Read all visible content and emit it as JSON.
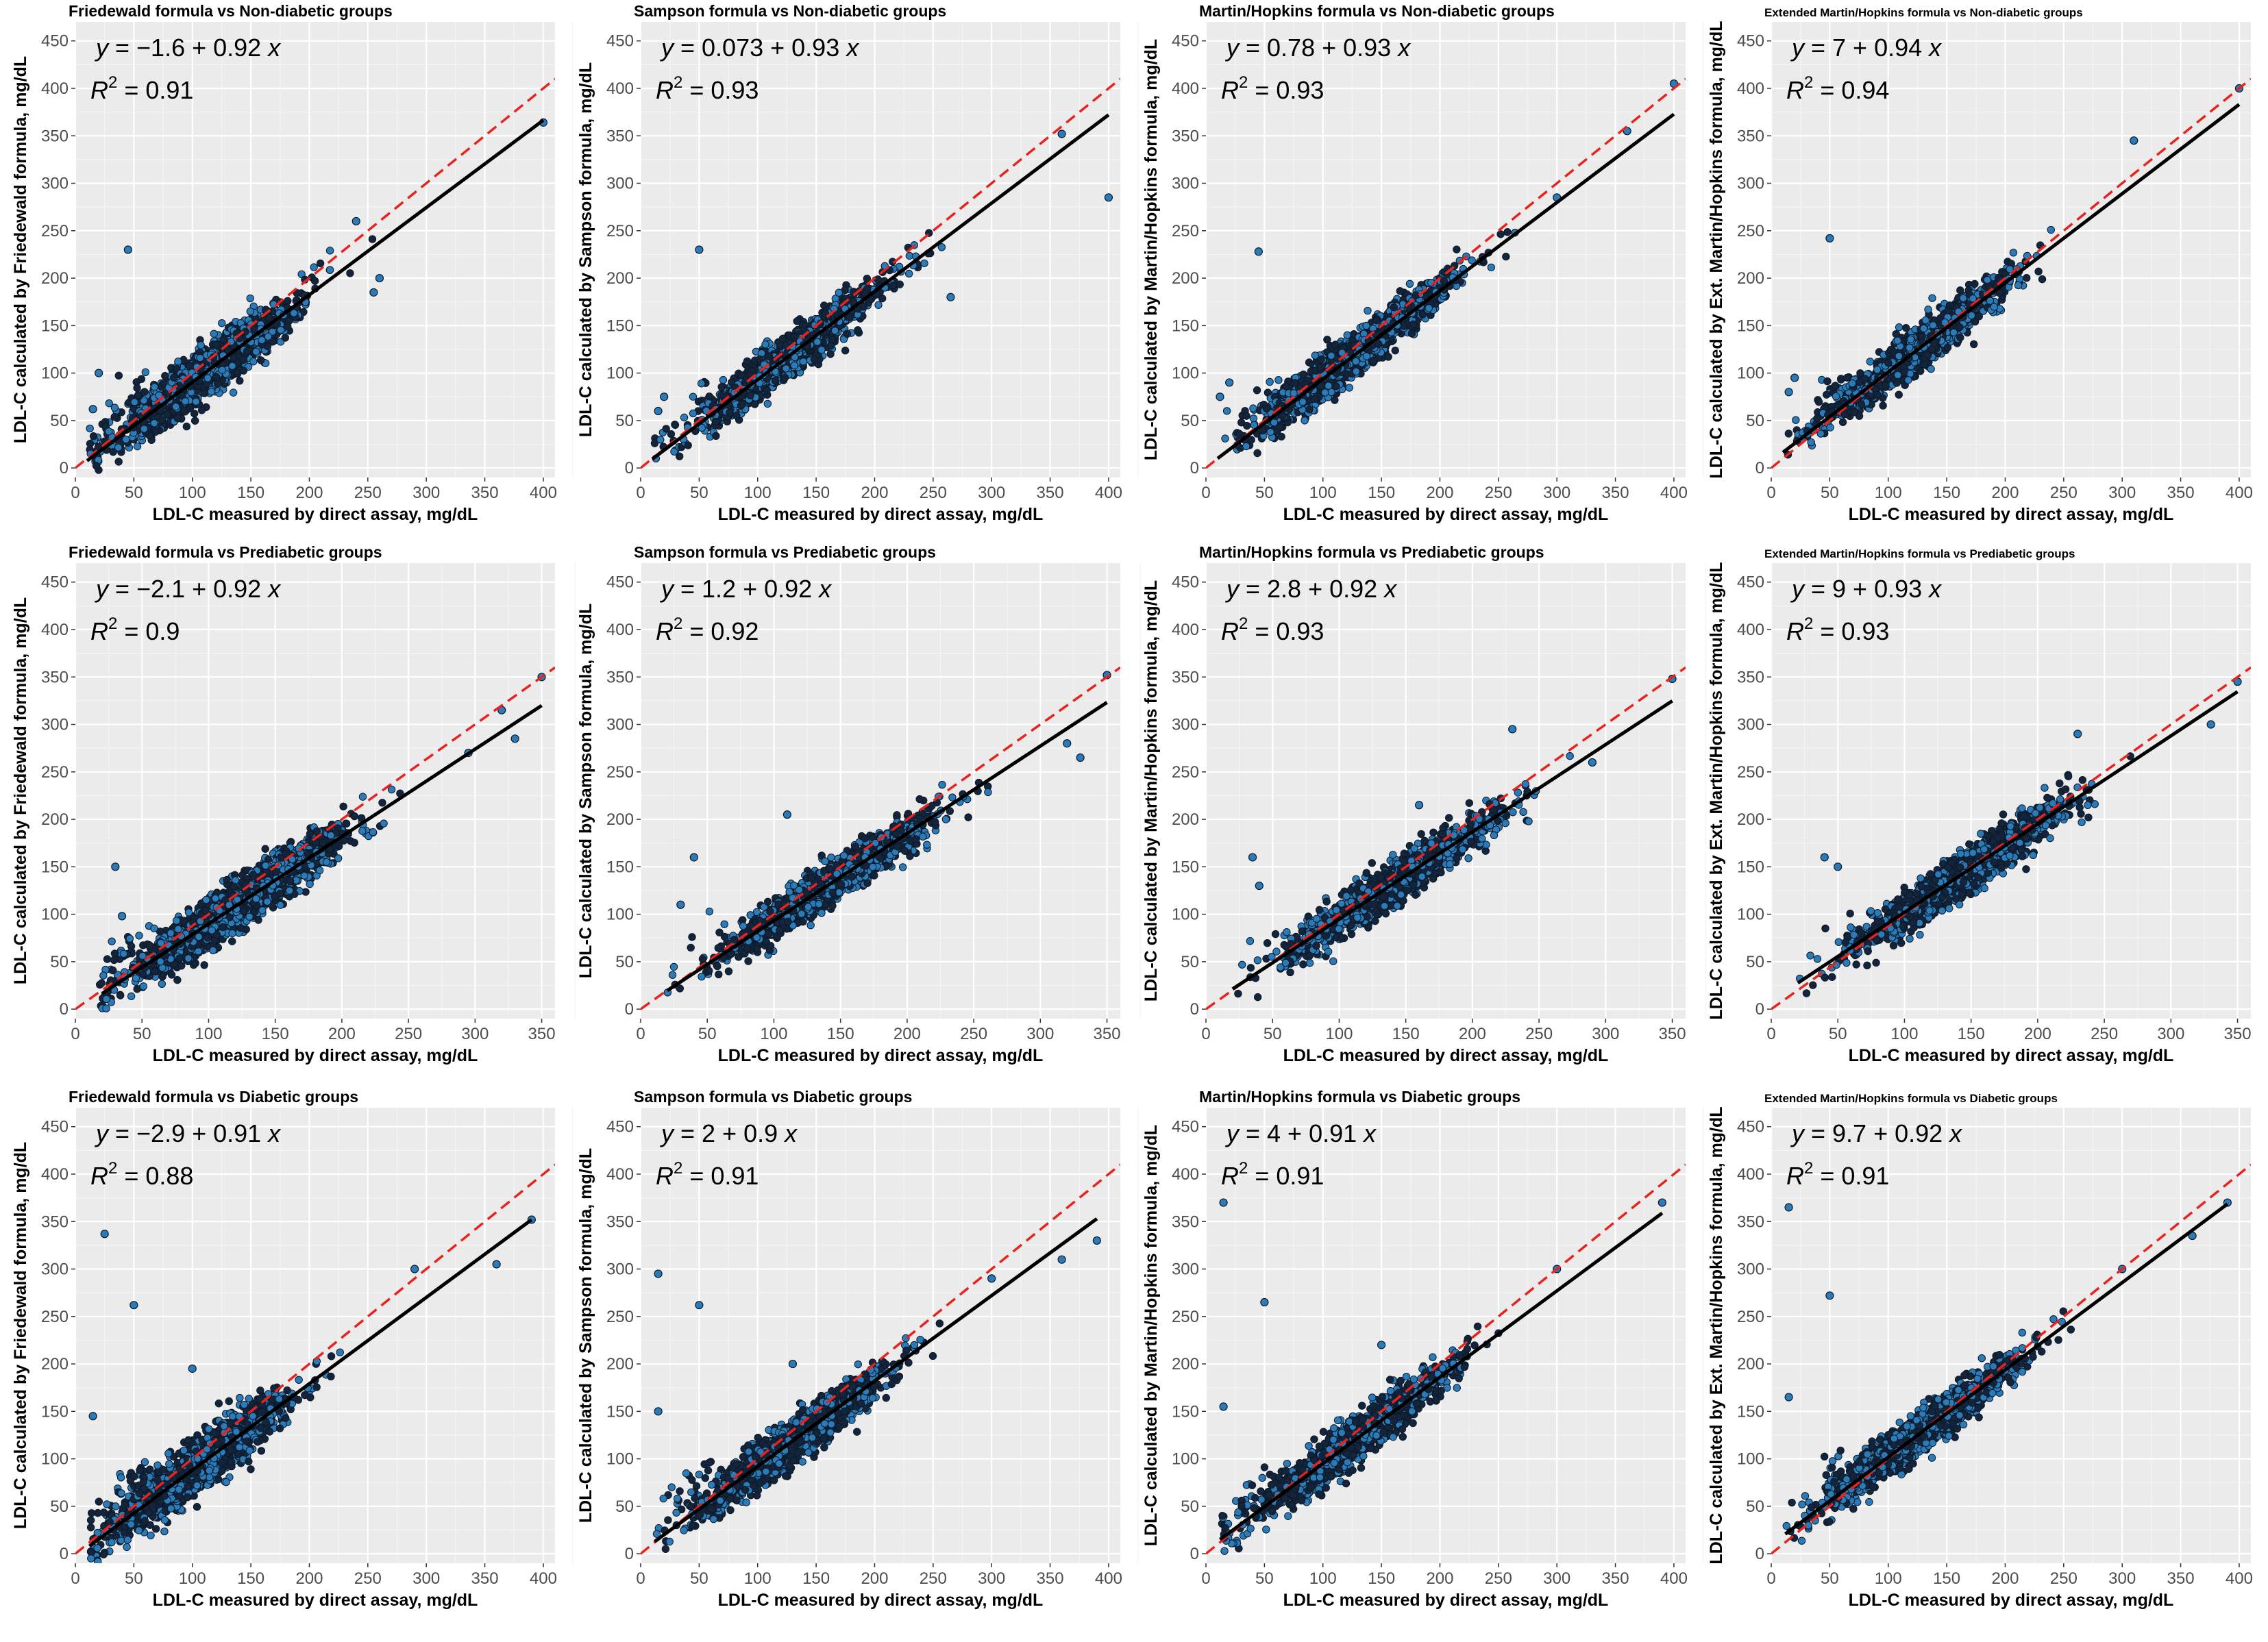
{
  "colors": {
    "panel_bg": "#ebebeb",
    "grid_major": "#ffffff",
    "grid_minor": "#f4f4f4",
    "point_fill": "#2b7bb9",
    "point_dark": "#14243a",
    "point_stroke": "#0b1a2a",
    "fit_line": "#000000",
    "identity_line": "#e8231e"
  },
  "x_axis_label": "LDL-C measured by direct assay, mg/dL",
  "chart_data": [
    {
      "type": "scatter",
      "row": 0,
      "col": 0,
      "title": "Friedewald formula vs Non-diabetic groups",
      "xlabel": "LDL-C measured by direct assay, mg/dL",
      "ylabel": "LDL-C calculated by Friedewald formula, mg/dL",
      "xlim": [
        0,
        410
      ],
      "ylim": [
        -10,
        470
      ],
      "xticks": [
        0,
        50,
        100,
        150,
        200,
        250,
        300,
        350,
        400
      ],
      "yticks": [
        0,
        50,
        100,
        150,
        200,
        250,
        300,
        350,
        400,
        450
      ],
      "equation": {
        "lhs": "y",
        "intercept": "−1.6",
        "sign": "+",
        "slope": "0.92",
        "var": "x"
      },
      "r2": {
        "label": "R",
        "sup": "2",
        "value": "= 0.91"
      },
      "fit": {
        "intercept": -1.6,
        "slope": 0.92,
        "x_range": [
          10,
          400
        ]
      },
      "identity_line": {
        "intercept": 0,
        "slope": 1
      },
      "cloud": {
        "x_center": 110,
        "x_spread": 38,
        "x_min": 12,
        "x_max": 265,
        "noise": 13,
        "n": 1600
      },
      "points": [
        [
          400,
          364
        ],
        [
          45,
          230
        ],
        [
          15,
          62
        ],
        [
          20,
          100
        ],
        [
          255,
          185
        ],
        [
          260,
          200
        ],
        [
          240,
          260
        ]
      ]
    },
    {
      "type": "scatter",
      "row": 0,
      "col": 1,
      "title": "Sampson formula vs Non-diabetic groups",
      "xlabel": "LDL-C measured by direct assay, mg/dL",
      "ylabel": "LDL-C calculated by Sampson formula, mg/dL",
      "xlim": [
        0,
        410
      ],
      "ylim": [
        -10,
        470
      ],
      "xticks": [
        0,
        50,
        100,
        150,
        200,
        250,
        300,
        350,
        400
      ],
      "yticks": [
        0,
        50,
        100,
        150,
        200,
        250,
        300,
        350,
        400,
        450
      ],
      "equation": {
        "lhs": "y",
        "intercept": "0.073",
        "sign": "+",
        "slope": "0.93",
        "var": "x"
      },
      "r2": {
        "label": "R",
        "sup": "2",
        "value": "= 0.93"
      },
      "fit": {
        "intercept": 0.073,
        "slope": 0.93,
        "x_range": [
          10,
          400
        ]
      },
      "identity_line": {
        "intercept": 0,
        "slope": 1
      },
      "cloud": {
        "x_center": 125,
        "x_spread": 40,
        "x_min": 12,
        "x_max": 265,
        "noise": 11,
        "n": 1400
      },
      "points": [
        [
          400,
          285
        ],
        [
          360,
          352
        ],
        [
          50,
          230
        ],
        [
          15,
          60
        ],
        [
          20,
          75
        ],
        [
          265,
          180
        ]
      ]
    },
    {
      "type": "scatter",
      "row": 0,
      "col": 2,
      "title": "Martin/Hopkins formula vs Non-diabetic groups",
      "xlabel": "LDL-C measured by direct assay, mg/dL",
      "ylabel": "LDL-C calculated by Martin/Hopkins formula, mg/dL",
      "xlim": [
        0,
        410
      ],
      "ylim": [
        -10,
        470
      ],
      "xticks": [
        0,
        50,
        100,
        150,
        200,
        250,
        300,
        350,
        400
      ],
      "yticks": [
        0,
        50,
        100,
        150,
        200,
        250,
        300,
        350,
        400,
        450
      ],
      "equation": {
        "lhs": "y",
        "intercept": "0.78",
        "sign": "+",
        "slope": "0.93",
        "var": "x"
      },
      "r2": {
        "label": "R",
        "sup": "2",
        "value": "= 0.93"
      },
      "fit": {
        "intercept": 0.78,
        "slope": 0.93,
        "x_range": [
          10,
          400
        ]
      },
      "identity_line": {
        "intercept": 0,
        "slope": 1
      },
      "cloud": {
        "x_center": 125,
        "x_spread": 40,
        "x_min": 12,
        "x_max": 265,
        "noise": 11,
        "n": 1400
      },
      "points": [
        [
          400,
          405
        ],
        [
          360,
          355
        ],
        [
          45,
          228
        ],
        [
          12,
          75
        ],
        [
          20,
          90
        ],
        [
          300,
          285
        ]
      ]
    },
    {
      "type": "scatter",
      "row": 0,
      "col": 3,
      "title": "Extended Martin/Hopkins formula vs Non-diabetic groups",
      "xlabel": "LDL-C measured by direct assay, mg/dL",
      "ylabel": "LDL-C calculated by Ext. Martin/Hopkins formula, mg/dL",
      "xlim": [
        0,
        410
      ],
      "ylim": [
        -10,
        470
      ],
      "xticks": [
        0,
        50,
        100,
        150,
        200,
        250,
        300,
        350,
        400
      ],
      "yticks": [
        0,
        50,
        100,
        150,
        200,
        250,
        300,
        350,
        400,
        450
      ],
      "equation": {
        "lhs": "y",
        "intercept": "7",
        "sign": "+",
        "slope": "0.94",
        "var": "x"
      },
      "r2": {
        "label": "R",
        "sup": "2",
        "value": "= 0.94"
      },
      "fit": {
        "intercept": 7,
        "slope": 0.94,
        "x_range": [
          10,
          400
        ]
      },
      "identity_line": {
        "intercept": 0,
        "slope": 1
      },
      "cloud": {
        "x_center": 125,
        "x_spread": 40,
        "x_min": 12,
        "x_max": 265,
        "noise": 11,
        "n": 1400
      },
      "points": [
        [
          400,
          400
        ],
        [
          310,
          345
        ],
        [
          50,
          242
        ],
        [
          15,
          80
        ],
        [
          20,
          95
        ]
      ]
    },
    {
      "type": "scatter",
      "row": 1,
      "col": 0,
      "title": "Friedewald formula vs Prediabetic groups",
      "xlabel": "LDL-C measured by direct assay, mg/dL",
      "ylabel": "LDL-C calculated by Friedewald formula, mg/dL",
      "xlim": [
        0,
        360
      ],
      "ylim": [
        -10,
        470
      ],
      "xticks": [
        0,
        50,
        100,
        150,
        200,
        250,
        300,
        350
      ],
      "yticks": [
        0,
        50,
        100,
        150,
        200,
        250,
        300,
        350,
        400,
        450
      ],
      "equation": {
        "lhs": "y",
        "intercept": "−2.1",
        "sign": "+",
        "slope": "0.92",
        "var": "x"
      },
      "r2": {
        "label": "R",
        "sup": "2",
        "value": "= 0.9"
      },
      "fit": {
        "intercept": -2.1,
        "slope": 0.92,
        "x_range": [
          20,
          350
        ]
      },
      "identity_line": {
        "intercept": 0,
        "slope": 1
      },
      "cloud": {
        "x_center": 120,
        "x_spread": 40,
        "x_min": 18,
        "x_max": 275,
        "noise": 13,
        "n": 1700
      },
      "points": [
        [
          350,
          350
        ],
        [
          330,
          285
        ],
        [
          320,
          315
        ],
        [
          30,
          150
        ],
        [
          35,
          98
        ],
        [
          295,
          270
        ]
      ]
    },
    {
      "type": "scatter",
      "row": 1,
      "col": 1,
      "title": "Sampson formula vs Prediabetic groups",
      "xlabel": "LDL-C measured by direct assay, mg/dL",
      "ylabel": "LDL-C calculated by Sampson formula, mg/dL",
      "xlim": [
        0,
        360
      ],
      "ylim": [
        -10,
        470
      ],
      "xticks": [
        0,
        50,
        100,
        150,
        200,
        250,
        300,
        350
      ],
      "yticks": [
        0,
        50,
        100,
        150,
        200,
        250,
        300,
        350,
        400,
        450
      ],
      "equation": {
        "lhs": "y",
        "intercept": "1.2",
        "sign": "+",
        "slope": "0.92",
        "var": "x"
      },
      "r2": {
        "label": "R",
        "sup": "2",
        "value": "= 0.92"
      },
      "fit": {
        "intercept": 1.2,
        "slope": 0.92,
        "x_range": [
          20,
          350
        ]
      },
      "identity_line": {
        "intercept": 0,
        "slope": 1
      },
      "cloud": {
        "x_center": 140,
        "x_spread": 38,
        "x_min": 20,
        "x_max": 275,
        "noise": 11,
        "n": 1500
      },
      "points": [
        [
          350,
          352
        ],
        [
          330,
          265
        ],
        [
          320,
          280
        ],
        [
          40,
          160
        ],
        [
          110,
          205
        ],
        [
          30,
          110
        ]
      ]
    },
    {
      "type": "scatter",
      "row": 1,
      "col": 2,
      "title": "Martin/Hopkins formula vs Prediabetic groups",
      "xlabel": "LDL-C measured by direct assay, mg/dL",
      "ylabel": "LDL-C calculated by Martin/Hopkins formula, mg/dL",
      "xlim": [
        0,
        360
      ],
      "ylim": [
        -10,
        470
      ],
      "xticks": [
        0,
        50,
        100,
        150,
        200,
        250,
        300,
        350
      ],
      "yticks": [
        0,
        50,
        100,
        150,
        200,
        250,
        300,
        350,
        400,
        450
      ],
      "equation": {
        "lhs": "y",
        "intercept": "2.8",
        "sign": "+",
        "slope": "0.92",
        "var": "x"
      },
      "r2": {
        "label": "R",
        "sup": "2",
        "value": "= 0.93"
      },
      "fit": {
        "intercept": 2.8,
        "slope": 0.92,
        "x_range": [
          20,
          350
        ]
      },
      "identity_line": {
        "intercept": 0,
        "slope": 1
      },
      "cloud": {
        "x_center": 140,
        "x_spread": 38,
        "x_min": 20,
        "x_max": 275,
        "noise": 11,
        "n": 1500
      },
      "points": [
        [
          350,
          348
        ],
        [
          230,
          295
        ],
        [
          160,
          215
        ],
        [
          40,
          130
        ],
        [
          35,
          160
        ],
        [
          290,
          260
        ]
      ]
    },
    {
      "type": "scatter",
      "row": 1,
      "col": 3,
      "title": "Extended Martin/Hopkins formula vs Prediabetic groups",
      "xlabel": "LDL-C measured by direct assay, mg/dL",
      "ylabel": "LDL-C calculated by Ext. Martin/Hopkins formula, mg/dL",
      "xlim": [
        0,
        360
      ],
      "ylim": [
        -10,
        470
      ],
      "xticks": [
        0,
        50,
        100,
        150,
        200,
        250,
        300,
        350
      ],
      "yticks": [
        0,
        50,
        100,
        150,
        200,
        250,
        300,
        350,
        400,
        450
      ],
      "equation": {
        "lhs": "y",
        "intercept": "9",
        "sign": "+",
        "slope": "0.93",
        "var": "x"
      },
      "r2": {
        "label": "R",
        "sup": "2",
        "value": "= 0.93"
      },
      "fit": {
        "intercept": 9,
        "slope": 0.93,
        "x_range": [
          20,
          350
        ]
      },
      "identity_line": {
        "intercept": 0,
        "slope": 1
      },
      "cloud": {
        "x_center": 140,
        "x_spread": 38,
        "x_min": 20,
        "x_max": 275,
        "noise": 11,
        "n": 1500
      },
      "points": [
        [
          350,
          345
        ],
        [
          330,
          300
        ],
        [
          230,
          290
        ],
        [
          40,
          160
        ],
        [
          50,
          150
        ]
      ]
    },
    {
      "type": "scatter",
      "row": 2,
      "col": 0,
      "title": "Friedewald formula vs Diabetic groups",
      "xlabel": "LDL-C measured by direct assay, mg/dL",
      "ylabel": "LDL-C calculated by Friedewald formula, mg/dL",
      "xlim": [
        0,
        410
      ],
      "ylim": [
        -10,
        470
      ],
      "xticks": [
        0,
        50,
        100,
        150,
        200,
        250,
        300,
        350,
        400
      ],
      "yticks": [
        0,
        50,
        100,
        150,
        200,
        250,
        300,
        350,
        400,
        450
      ],
      "equation": {
        "lhs": "y",
        "intercept": "−2.9",
        "sign": "+",
        "slope": "0.91",
        "var": "x"
      },
      "r2": {
        "label": "R",
        "sup": "2",
        "value": "= 0.88"
      },
      "fit": {
        "intercept": -2.9,
        "slope": 0.91,
        "x_range": [
          12,
          390
        ]
      },
      "identity_line": {
        "intercept": 0,
        "slope": 1
      },
      "cloud": {
        "x_center": 105,
        "x_spread": 38,
        "x_min": 12,
        "x_max": 265,
        "noise": 13,
        "n": 1600
      },
      "points": [
        [
          390,
          352
        ],
        [
          360,
          305
        ],
        [
          25,
          337
        ],
        [
          50,
          262
        ],
        [
          15,
          145
        ],
        [
          100,
          195
        ],
        [
          290,
          300
        ]
      ]
    },
    {
      "type": "scatter",
      "row": 2,
      "col": 1,
      "title": "Sampson formula vs Diabetic groups",
      "xlabel": "LDL-C measured by direct assay, mg/dL",
      "ylabel": "LDL-C calculated by Sampson formula, mg/dL",
      "xlim": [
        0,
        410
      ],
      "ylim": [
        -10,
        470
      ],
      "xticks": [
        0,
        50,
        100,
        150,
        200,
        250,
        300,
        350,
        400
      ],
      "yticks": [
        0,
        50,
        100,
        150,
        200,
        250,
        300,
        350,
        400,
        450
      ],
      "equation": {
        "lhs": "y",
        "intercept": "2",
        "sign": "+",
        "slope": "0.9",
        "var": "x"
      },
      "r2": {
        "label": "R",
        "sup": "2",
        "value": "= 0.91"
      },
      "fit": {
        "intercept": 2,
        "slope": 0.9,
        "x_range": [
          12,
          390
        ]
      },
      "identity_line": {
        "intercept": 0,
        "slope": 1
      },
      "cloud": {
        "x_center": 125,
        "x_spread": 40,
        "x_min": 12,
        "x_max": 265,
        "noise": 11,
        "n": 1500
      },
      "points": [
        [
          390,
          330
        ],
        [
          360,
          310
        ],
        [
          15,
          295
        ],
        [
          50,
          262
        ],
        [
          15,
          150
        ],
        [
          130,
          200
        ],
        [
          300,
          290
        ]
      ]
    },
    {
      "type": "scatter",
      "row": 2,
      "col": 2,
      "title": "Martin/Hopkins formula vs Diabetic groups",
      "xlabel": "LDL-C measured by direct assay, mg/dL",
      "ylabel": "LDL-C calculated by Martin/Hopkins formula, mg/dL",
      "xlim": [
        0,
        410
      ],
      "ylim": [
        -10,
        470
      ],
      "xticks": [
        0,
        50,
        100,
        150,
        200,
        250,
        300,
        350,
        400
      ],
      "yticks": [
        0,
        50,
        100,
        150,
        200,
        250,
        300,
        350,
        400,
        450
      ],
      "equation": {
        "lhs": "y",
        "intercept": "4",
        "sign": "+",
        "slope": "0.91",
        "var": "x"
      },
      "r2": {
        "label": "R",
        "sup": "2",
        "value": "= 0.91"
      },
      "fit": {
        "intercept": 4,
        "slope": 0.91,
        "x_range": [
          12,
          390
        ]
      },
      "identity_line": {
        "intercept": 0,
        "slope": 1
      },
      "cloud": {
        "x_center": 125,
        "x_spread": 40,
        "x_min": 12,
        "x_max": 265,
        "noise": 11,
        "n": 1500
      },
      "points": [
        [
          390,
          370
        ],
        [
          15,
          370
        ],
        [
          50,
          265
        ],
        [
          15,
          155
        ],
        [
          150,
          220
        ],
        [
          300,
          300
        ]
      ]
    },
    {
      "type": "scatter",
      "row": 2,
      "col": 3,
      "title": "Extended Martin/Hopkins formula vs Diabetic groups",
      "xlabel": "LDL-C measured by direct assay, mg/dL",
      "ylabel": "LDL-C calculated by Ext. Martin/Hopkins formula, mg/dL",
      "xlim": [
        0,
        410
      ],
      "ylim": [
        -10,
        470
      ],
      "xticks": [
        0,
        50,
        100,
        150,
        200,
        250,
        300,
        350,
        400
      ],
      "yticks": [
        0,
        50,
        100,
        150,
        200,
        250,
        300,
        350,
        400,
        450
      ],
      "equation": {
        "lhs": "y",
        "intercept": "9.7",
        "sign": "+",
        "slope": "0.92",
        "var": "x"
      },
      "r2": {
        "label": "R",
        "sup": "2",
        "value": "= 0.91"
      },
      "fit": {
        "intercept": 9.7,
        "slope": 0.92,
        "x_range": [
          12,
          390
        ]
      },
      "identity_line": {
        "intercept": 0,
        "slope": 1
      },
      "cloud": {
        "x_center": 125,
        "x_spread": 40,
        "x_min": 12,
        "x_max": 265,
        "noise": 11,
        "n": 1500
      },
      "points": [
        [
          390,
          370
        ],
        [
          360,
          335
        ],
        [
          15,
          365
        ],
        [
          50,
          272
        ],
        [
          15,
          165
        ],
        [
          300,
          300
        ]
      ]
    }
  ]
}
